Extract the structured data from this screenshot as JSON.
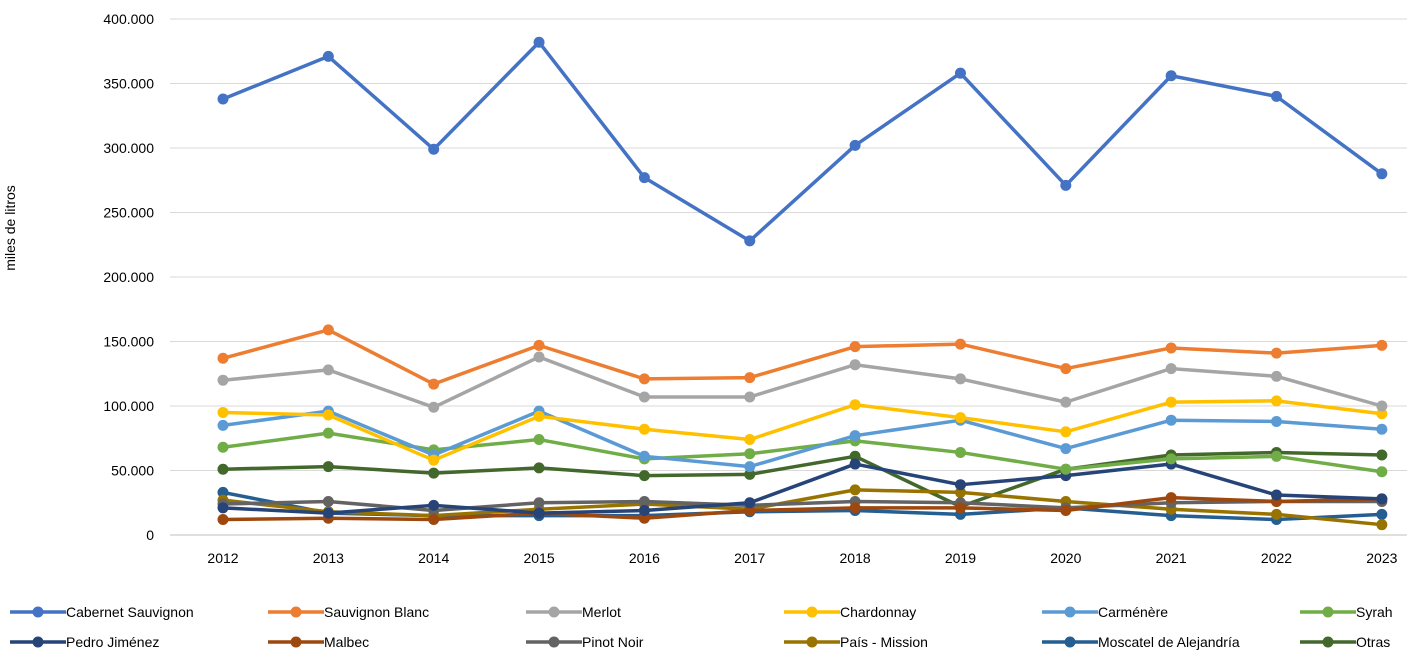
{
  "chart_data": {
    "type": "line",
    "title": "",
    "xlabel": "",
    "ylabel": "miles de litros",
    "ylim": [
      0,
      400000
    ],
    "y_ticks": [
      "0",
      "50.000",
      "100.000",
      "150.000",
      "200.000",
      "250.000",
      "300.000",
      "350.000",
      "400.000"
    ],
    "categories": [
      "2012",
      "2013",
      "2014",
      "2015",
      "2016",
      "2017",
      "2018",
      "2019",
      "2020",
      "2021",
      "2022",
      "2023"
    ],
    "grid": "horizontal",
    "legend_position": "bottom",
    "series": [
      {
        "name": "Cabernet Sauvignon",
        "color": "#4472C4",
        "values": [
          338000,
          371000,
          299000,
          382000,
          277000,
          228000,
          302000,
          358000,
          271000,
          356000,
          340000,
          280000
        ]
      },
      {
        "name": "Sauvignon Blanc",
        "color": "#ED7D31",
        "values": [
          137000,
          159000,
          117000,
          147000,
          121000,
          122000,
          146000,
          148000,
          129000,
          145000,
          141000,
          147000
        ]
      },
      {
        "name": "Merlot",
        "color": "#A5A5A5",
        "values": [
          120000,
          128000,
          99000,
          138000,
          107000,
          107000,
          132000,
          121000,
          103000,
          129000,
          123000,
          100000
        ]
      },
      {
        "name": "Chardonnay",
        "color": "#FFC000",
        "values": [
          95000,
          93000,
          58000,
          92000,
          82000,
          74000,
          101000,
          91000,
          80000,
          103000,
          104000,
          94000
        ]
      },
      {
        "name": "Carménère",
        "color": "#5B9BD5",
        "values": [
          85000,
          96000,
          62000,
          96000,
          61000,
          53000,
          77000,
          89000,
          67000,
          89000,
          88000,
          82000
        ]
      },
      {
        "name": "Syrah",
        "color": "#70AD47",
        "values": [
          68000,
          79000,
          66000,
          74000,
          59000,
          63000,
          73000,
          64000,
          51000,
          59000,
          61000,
          49000
        ]
      },
      {
        "name": "Pedro Jiménez",
        "color": "#264478",
        "values": [
          21000,
          17000,
          23000,
          17000,
          19000,
          25000,
          55000,
          39000,
          46000,
          55000,
          31000,
          28000
        ]
      },
      {
        "name": "Malbec",
        "color": "#9E480E",
        "values": [
          12000,
          13000,
          12000,
          17000,
          13000,
          19000,
          21000,
          21000,
          19000,
          29000,
          26000,
          28000
        ]
      },
      {
        "name": "Pinot Noir",
        "color": "#636363",
        "values": [
          24000,
          26000,
          19000,
          25000,
          26000,
          23000,
          26000,
          25000,
          21000,
          25000,
          26000,
          26000
        ]
      },
      {
        "name": "País - Mission",
        "color": "#997300",
        "values": [
          27000,
          18000,
          15000,
          20000,
          24000,
          20000,
          35000,
          33000,
          26000,
          20000,
          16000,
          8000
        ]
      },
      {
        "name": "Moscatel de Alejandría",
        "color": "#255E91",
        "values": [
          33000,
          17000,
          15000,
          15000,
          15000,
          18000,
          19000,
          16000,
          21000,
          15000,
          12000,
          16000
        ]
      },
      {
        "name": "Otras",
        "color": "#43682B",
        "values": [
          51000,
          53000,
          48000,
          52000,
          46000,
          47000,
          61000,
          22000,
          51000,
          62000,
          64000,
          62000
        ]
      }
    ]
  }
}
